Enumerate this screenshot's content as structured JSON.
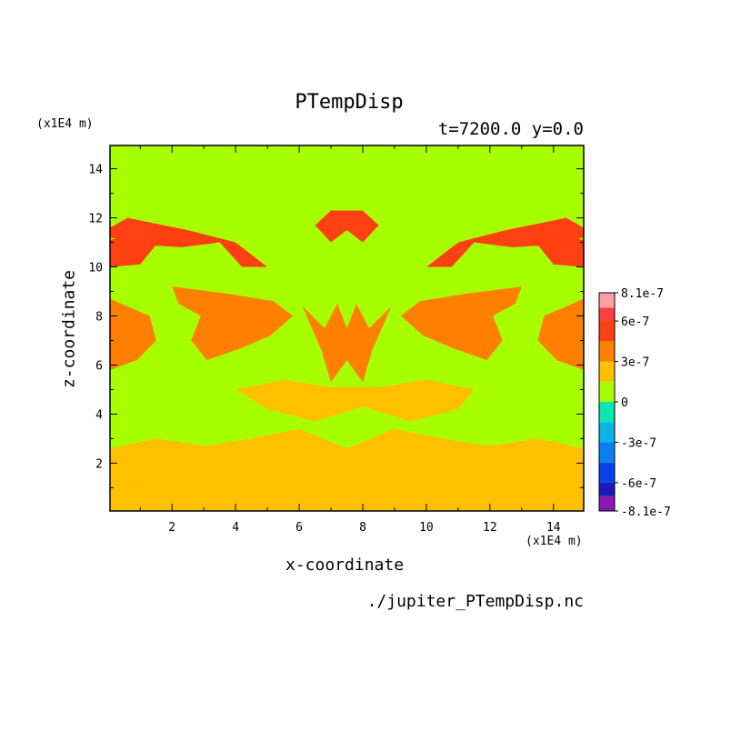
{
  "chart_data": {
    "type": "heatmap",
    "title": "PTempDisp",
    "subtitle": "t=7200.0 y=0.0",
    "xlabel": "x-coordinate",
    "ylabel": "z-coordinate",
    "x_unit": "(x1E4 m)",
    "y_unit": "(x1E4 m)",
    "source": "./jupiter_PTempDisp.nc",
    "xlim": [
      0.05,
      14.95
    ],
    "ylim": [
      0.05,
      14.95
    ],
    "x_ticks": [
      2,
      4,
      6,
      8,
      10,
      12,
      14
    ],
    "y_ticks": [
      2,
      4,
      6,
      8,
      10,
      12,
      14
    ],
    "colorbar": {
      "levels": [
        {
          "min": -8.1e-07,
          "max": -7e-07,
          "color": "#8a1ab4"
        },
        {
          "min": -7e-07,
          "max": -6e-07,
          "color": "#1a1ab8"
        },
        {
          "min": -6e-07,
          "max": -4.5e-07,
          "color": "#0a40f0"
        },
        {
          "min": -4.5e-07,
          "max": -3e-07,
          "color": "#0a80f0"
        },
        {
          "min": -3e-07,
          "max": -1.5e-07,
          "color": "#0ab4e6"
        },
        {
          "min": -1.5e-07,
          "max": 0,
          "color": "#0ae6b4"
        },
        {
          "min": 0,
          "max": 1.5e-07,
          "color": "#a8ff00"
        },
        {
          "min": 1.5e-07,
          "max": 3e-07,
          "color": "#ffc000"
        },
        {
          "min": 3e-07,
          "max": 4.5e-07,
          "color": "#ff8000"
        },
        {
          "min": 4.5e-07,
          "max": 6e-07,
          "color": "#ff4010"
        },
        {
          "min": 6e-07,
          "max": 7e-07,
          "color": "#ff4040"
        },
        {
          "min": 7e-07,
          "max": 8.1e-07,
          "color": "#ffa0a0"
        }
      ],
      "tick_labels": [
        {
          "value": 8.1e-07,
          "label": "8.1e-7"
        },
        {
          "value": 6e-07,
          "label": "6e-7"
        },
        {
          "value": 3e-07,
          "label": "3e-7"
        },
        {
          "value": 0,
          "label": "0"
        },
        {
          "value": -3e-07,
          "label": "-3e-7"
        },
        {
          "value": -6e-07,
          "label": "-6e-7"
        },
        {
          "value": -8.1e-07,
          "label": "-8.1e-7"
        }
      ]
    },
    "field_regions": {
      "background_color": "#a8ff00",
      "bands": [
        {
          "name": "lower-yellow",
          "color": "#ffc000",
          "points": [
            [
              0.05,
              0.05
            ],
            [
              14.95,
              0.05
            ],
            [
              14.95,
              2.6
            ],
            [
              13.5,
              3.0
            ],
            [
              12,
              2.7
            ],
            [
              10.5,
              3.0
            ],
            [
              9,
              3.4
            ],
            [
              7.5,
              2.6
            ],
            [
              6,
              3.4
            ],
            [
              4.5,
              3.0
            ],
            [
              3,
              2.7
            ],
            [
              1.5,
              3.0
            ],
            [
              0.05,
              2.6
            ]
          ]
        },
        {
          "name": "middle-yellow",
          "color": "#ffc000",
          "points": [
            [
              4.0,
              5.0
            ],
            [
              5.5,
              5.4
            ],
            [
              7.0,
              5.1
            ],
            [
              8.5,
              5.1
            ],
            [
              10.0,
              5.4
            ],
            [
              11.5,
              5.0
            ],
            [
              11.0,
              4.2
            ],
            [
              9.5,
              3.7
            ],
            [
              8.0,
              4.3
            ],
            [
              6.5,
              3.7
            ],
            [
              5.0,
              4.2
            ]
          ]
        },
        {
          "name": "central-orange",
          "color": "#ff8000",
          "points": [
            [
              6.1,
              8.4
            ],
            [
              6.8,
              7.5
            ],
            [
              7.2,
              8.5
            ],
            [
              7.5,
              7.5
            ],
            [
              7.8,
              8.5
            ],
            [
              8.2,
              7.5
            ],
            [
              8.9,
              8.4
            ],
            [
              8.3,
              6.6
            ],
            [
              8.0,
              5.3
            ],
            [
              7.5,
              6.2
            ],
            [
              7.0,
              5.3
            ],
            [
              6.7,
              6.6
            ]
          ]
        },
        {
          "name": "left-orange",
          "color": "#ff8000",
          "points": [
            [
              2.0,
              9.2
            ],
            [
              3.8,
              8.9
            ],
            [
              5.2,
              8.6
            ],
            [
              5.8,
              8.0
            ],
            [
              5.1,
              7.2
            ],
            [
              4.2,
              6.7
            ],
            [
              3.1,
              6.2
            ],
            [
              2.6,
              7.0
            ],
            [
              2.9,
              8.0
            ],
            [
              2.2,
              8.5
            ]
          ]
        },
        {
          "name": "right-orange",
          "color": "#ff8000",
          "points": [
            [
              13.0,
              9.2
            ],
            [
              11.2,
              8.9
            ],
            [
              9.8,
              8.6
            ],
            [
              9.2,
              8.0
            ],
            [
              9.9,
              7.2
            ],
            [
              10.8,
              6.7
            ],
            [
              11.9,
              6.2
            ],
            [
              12.4,
              7.0
            ],
            [
              12.1,
              8.0
            ],
            [
              12.8,
              8.5
            ]
          ]
        },
        {
          "name": "left-edge-orange",
          "color": "#ff8000",
          "points": [
            [
              0.05,
              8.7
            ],
            [
              1.3,
              8.0
            ],
            [
              1.5,
              7.0
            ],
            [
              0.9,
              6.2
            ],
            [
              0.05,
              5.8
            ]
          ]
        },
        {
          "name": "right-edge-orange",
          "color": "#ff8000",
          "points": [
            [
              14.95,
              8.7
            ],
            [
              13.7,
              8.0
            ],
            [
              13.5,
              7.0
            ],
            [
              14.1,
              6.2
            ],
            [
              14.95,
              5.8
            ]
          ]
        },
        {
          "name": "upper-red",
          "color": "#ff4010",
          "points": [
            [
              0.6,
              12.0
            ],
            [
              2.5,
              11.5
            ],
            [
              4.0,
              11.0
            ],
            [
              5.0,
              10.0
            ],
            [
              4.2,
              10.0
            ],
            [
              3.5,
              11.0
            ],
            [
              2.3,
              10.8
            ],
            [
              1.0,
              10.9
            ],
            [
              0.05,
              11.2
            ],
            [
              0.05,
              11.6
            ]
          ]
        },
        {
          "name": "upper-red-right",
          "color": "#ff4010",
          "points": [
            [
              14.4,
              12.0
            ],
            [
              12.5,
              11.5
            ],
            [
              11.0,
              11.0
            ],
            [
              10.0,
              10.0
            ],
            [
              10.8,
              10.0
            ],
            [
              11.5,
              11.0
            ],
            [
              12.7,
              10.8
            ],
            [
              14.0,
              10.9
            ],
            [
              14.95,
              11.2
            ],
            [
              14.95,
              11.6
            ]
          ]
        },
        {
          "name": "crown-red",
          "color": "#ff4010",
          "points": [
            [
              6.5,
              11.7
            ],
            [
              7.0,
              12.3
            ],
            [
              8.0,
              12.3
            ],
            [
              8.5,
              11.7
            ],
            [
              8.0,
              11.0
            ],
            [
              7.5,
              11.5
            ],
            [
              7.0,
              11.0
            ]
          ]
        },
        {
          "name": "left-blob-red",
          "color": "#ff4010",
          "points": [
            [
              0.05,
              11.1
            ],
            [
              0.8,
              11.3
            ],
            [
              1.5,
              10.9
            ],
            [
              1.0,
              10.1
            ],
            [
              0.05,
              10.0
            ]
          ]
        },
        {
          "name": "right-blob-red",
          "color": "#ff4010",
          "points": [
            [
              14.95,
              11.1
            ],
            [
              14.2,
              11.3
            ],
            [
              13.5,
              10.9
            ],
            [
              14.0,
              10.1
            ],
            [
              14.95,
              10.0
            ]
          ]
        }
      ]
    }
  }
}
